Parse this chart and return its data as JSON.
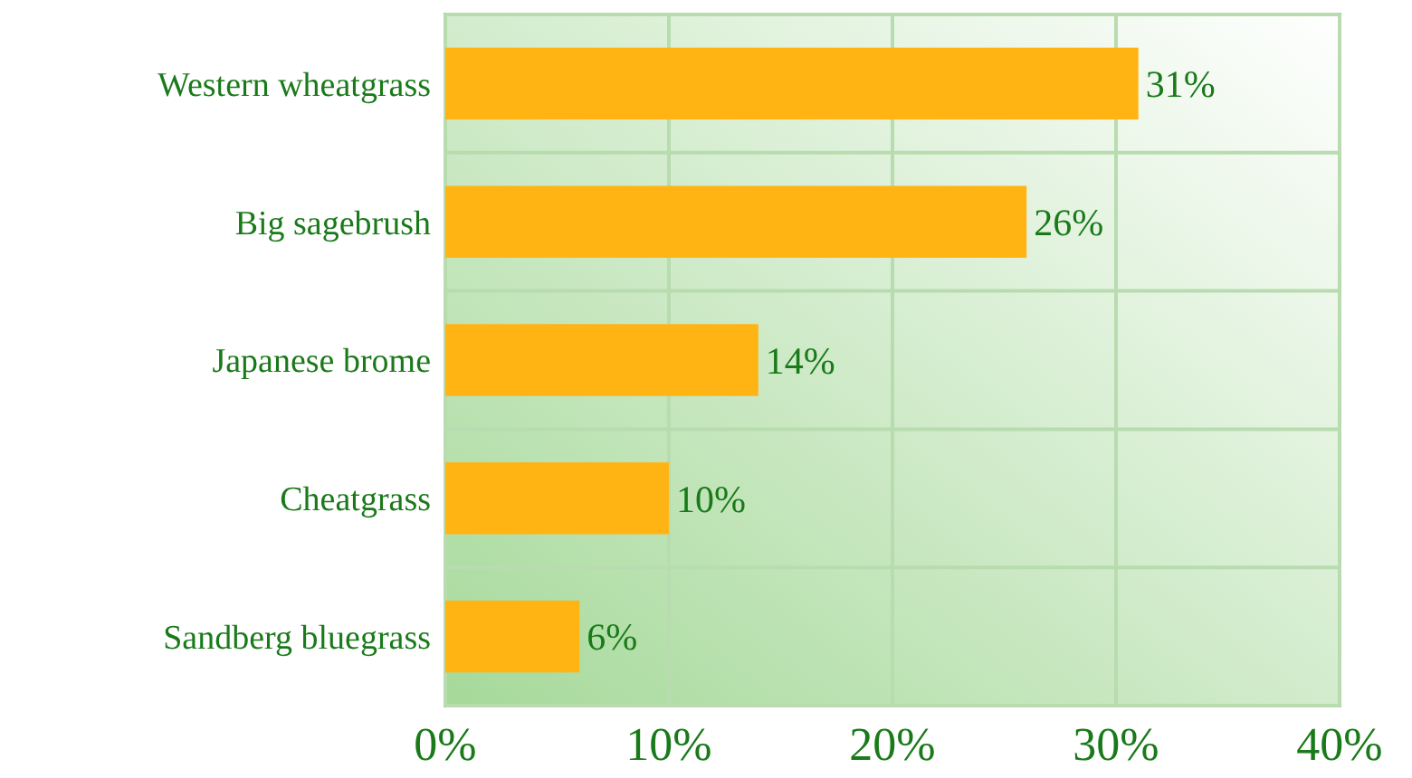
{
  "chart_data": {
    "type": "bar",
    "orientation": "horizontal",
    "categories": [
      "Western wheatgrass",
      "Big sagebrush",
      "Japanese brome",
      "Cheatgrass",
      "Sandberg bluegrass"
    ],
    "values": [
      31,
      26,
      14,
      10,
      6
    ],
    "color": "#ffb414",
    "value_labels": [
      "31%",
      "26%",
      "14%",
      "10%",
      "6%"
    ],
    "xlim": [
      0,
      40
    ],
    "xticks": [
      {
        "value": 0,
        "label": "0%"
      },
      {
        "value": 10,
        "label": "10%"
      },
      {
        "value": 20,
        "label": "20%"
      },
      {
        "value": 30,
        "label": "30%"
      },
      {
        "value": 40,
        "label": "40%"
      }
    ],
    "grid": true
  }
}
